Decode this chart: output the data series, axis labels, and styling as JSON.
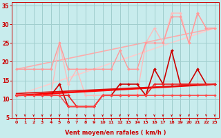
{
  "background_color": "#c8eced",
  "grid_color": "#a0cece",
  "xlabel": "Vent moyen/en rafales ( km/h )",
  "xlabel_color": "#cc0000",
  "tick_color": "#cc0000",
  "xlim": [
    -0.5,
    23.5
  ],
  "ylim": [
    5,
    36
  ],
  "yticks": [
    5,
    10,
    15,
    20,
    25,
    30,
    35
  ],
  "xticks": [
    0,
    1,
    2,
    3,
    4,
    5,
    6,
    7,
    8,
    9,
    10,
    11,
    12,
    13,
    14,
    15,
    16,
    17,
    18,
    19,
    20,
    21,
    22,
    23
  ],
  "series": [
    {
      "x": [
        0,
        1,
        2,
        3,
        4,
        5,
        6,
        7,
        8,
        9,
        10,
        11,
        12,
        13,
        14,
        15,
        16,
        17,
        18,
        19,
        20,
        21,
        22,
        23
      ],
      "y": [
        11,
        11,
        11,
        11,
        11,
        25,
        14,
        18,
        11,
        11,
        11,
        11,
        11,
        11,
        11,
        25,
        29,
        25,
        33,
        33,
        25,
        33,
        29,
        29
      ],
      "color": "#ffbbbb",
      "linewidth": 1.0,
      "marker": "D",
      "markersize": 2.0,
      "zorder": 2
    },
    {
      "x": [
        0,
        1,
        2,
        3,
        4,
        5,
        6,
        7,
        8,
        9,
        10,
        11,
        12,
        13,
        14,
        15,
        16,
        17,
        18,
        19,
        20,
        21,
        22,
        23
      ],
      "y": [
        18,
        18,
        18,
        18,
        18,
        25,
        18,
        18,
        18,
        18,
        18,
        18,
        23,
        18,
        18,
        25,
        25,
        25,
        32,
        32,
        25,
        33,
        29,
        29
      ],
      "color": "#ff9999",
      "linewidth": 1.0,
      "marker": "D",
      "markersize": 2.0,
      "zorder": 2
    },
    {
      "x": [
        0,
        23
      ],
      "y": [
        11,
        29
      ],
      "color": "#ffcccc",
      "linewidth": 1.2,
      "marker": null,
      "markersize": 0,
      "zorder": 1
    },
    {
      "x": [
        0,
        23
      ],
      "y": [
        18,
        29
      ],
      "color": "#ffaaaa",
      "linewidth": 1.2,
      "marker": null,
      "markersize": 0,
      "zorder": 1
    },
    {
      "x": [
        0,
        1,
        2,
        3,
        4,
        5,
        6,
        7,
        8,
        9,
        10,
        11,
        12,
        13,
        14,
        15,
        16,
        17,
        18,
        19,
        20,
        21,
        22,
        23
      ],
      "y": [
        11,
        11,
        11,
        11,
        11,
        14,
        8,
        8,
        8,
        8,
        11,
        11,
        14,
        14,
        14,
        11,
        18,
        14,
        23,
        14,
        14,
        18,
        14,
        14
      ],
      "color": "#cc0000",
      "linewidth": 1.2,
      "marker": "D",
      "markersize": 2.0,
      "zorder": 3
    },
    {
      "x": [
        0,
        1,
        2,
        3,
        4,
        5,
        6,
        7,
        8,
        9,
        10,
        11,
        12,
        13,
        14,
        15,
        16,
        17,
        18,
        19,
        20,
        21,
        22,
        23
      ],
      "y": [
        11,
        11,
        11,
        11,
        11,
        11,
        11,
        8,
        8,
        8,
        11,
        11,
        11,
        11,
        11,
        11,
        14,
        14,
        14,
        14,
        14,
        14,
        14,
        14
      ],
      "color": "#ee2222",
      "linewidth": 1.2,
      "marker": "D",
      "markersize": 2.0,
      "zorder": 3
    },
    {
      "x": [
        0,
        23
      ],
      "y": [
        11,
        14
      ],
      "color": "#ff0000",
      "linewidth": 1.8,
      "marker": null,
      "markersize": 0,
      "zorder": 2
    },
    {
      "x": [
        0,
        23
      ],
      "y": [
        11.5,
        14
      ],
      "color": "#dd1111",
      "linewidth": 1.2,
      "marker": null,
      "markersize": 0,
      "zorder": 2
    },
    {
      "x": [
        0,
        1,
        2,
        3,
        4,
        5,
        6,
        7,
        8,
        9,
        10,
        11,
        12,
        13,
        14,
        15,
        16,
        17,
        18,
        19,
        20,
        21,
        22,
        23
      ],
      "y": [
        11,
        11,
        11,
        11,
        11,
        11,
        8,
        8,
        8,
        8,
        11,
        11,
        11,
        11,
        11,
        11,
        11,
        11,
        11,
        11,
        11,
        11,
        11,
        11
      ],
      "color": "#ff4444",
      "linewidth": 1.0,
      "marker": "D",
      "markersize": 1.8,
      "zorder": 3
    }
  ],
  "arrow_color": "#cc0000",
  "arrow_size": 4
}
